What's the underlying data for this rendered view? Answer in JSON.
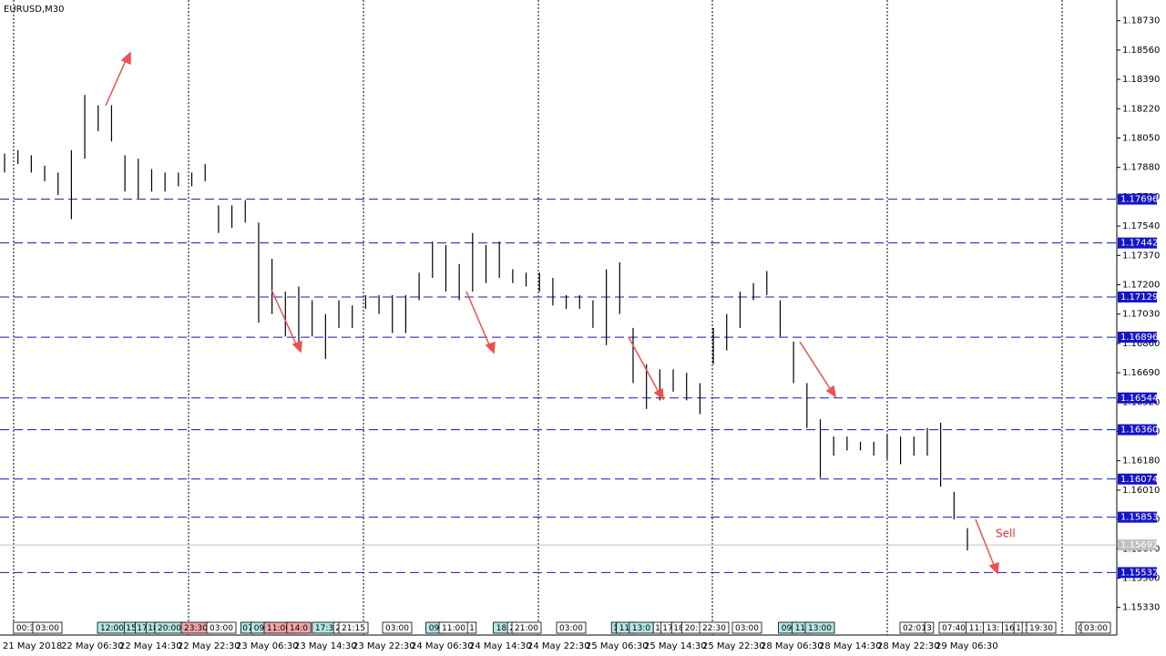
{
  "chart_data": {
    "type": "ohlc",
    "title": "EURUSD,M30",
    "bar_color": "#000000",
    "highs": [
      1.1796,
      1.1798,
      1.1795,
      1.1789,
      1.1785,
      1.1798,
      1.183,
      1.1824,
      1.1824,
      1.1795,
      1.1793,
      1.1787,
      1.1785,
      1.1785,
      1.1785,
      1.179,
      1.1766,
      1.1766,
      1.1769,
      1.1756,
      1.1735,
      1.1716,
      1.1719,
      1.1711,
      1.1703,
      1.1711,
      1.1708,
      1.1714,
      1.1714,
      1.1714,
      1.1714,
      1.1727,
      1.1745,
      1.1743,
      1.1732,
      1.175,
      1.1743,
      1.1745,
      1.1729,
      1.1727,
      1.1727,
      1.1724,
      1.1714,
      1.1714,
      1.1711,
      1.1729,
      1.1733,
      1.1695,
      1.1674,
      1.1671,
      1.1671,
      1.1669,
      1.1663,
      1.1695,
      1.1703,
      1.1716,
      1.1721,
      1.1728,
      1.1711,
      1.1687,
      1.1663,
      1.1642,
      1.1632,
      1.1632,
      1.1629,
      1.1629,
      1.1633,
      1.1632,
      1.1632,
      1.1637,
      1.164,
      1.16,
      1.1579
    ],
    "lows": [
      1.1785,
      1.179,
      1.1785,
      1.178,
      1.1772,
      1.1758,
      1.1793,
      1.1809,
      1.1803,
      1.1774,
      1.177,
      1.1774,
      1.1774,
      1.1777,
      1.1777,
      1.178,
      1.175,
      1.1753,
      1.1756,
      1.1698,
      1.1703,
      1.169,
      1.1685,
      1.169,
      1.1677,
      1.1695,
      1.1695,
      1.1706,
      1.1703,
      1.1692,
      1.1692,
      1.1711,
      1.1724,
      1.1716,
      1.1711,
      1.1716,
      1.1721,
      1.1724,
      1.1721,
      1.1719,
      1.1716,
      1.1708,
      1.1706,
      1.1706,
      1.1695,
      1.1685,
      1.1703,
      1.1663,
      1.1648,
      1.1653,
      1.1658,
      1.1653,
      1.1645,
      1.1674,
      1.1682,
      1.1695,
      1.1711,
      1.1714,
      1.169,
      1.1663,
      1.1637,
      1.1608,
      1.1621,
      1.1624,
      1.1624,
      1.1621,
      1.1619,
      1.1616,
      1.1621,
      1.1621,
      1.1603,
      1.1584,
      1.1566
    ],
    "ylim": [
      1.1517,
      1.1885
    ],
    "yticks": [
      {
        "value": 1.1873,
        "label": "1.18730"
      },
      {
        "value": 1.1856,
        "label": "1.18560"
      },
      {
        "value": 1.1839,
        "label": "1.18390"
      },
      {
        "value": 1.1822,
        "label": "1.18220"
      },
      {
        "value": 1.1805,
        "label": "1.18050"
      },
      {
        "value": 1.1788,
        "label": "1.17880"
      },
      {
        "value": 1.1771,
        "label": "1.17710"
      },
      {
        "value": 1.1754,
        "label": "1.17540"
      },
      {
        "value": 1.1737,
        "label": "1.17370"
      },
      {
        "value": 1.172,
        "label": "1.17200"
      },
      {
        "value": 1.1703,
        "label": "1.17030"
      },
      {
        "value": 1.1686,
        "label": "1.16860"
      },
      {
        "value": 1.1669,
        "label": "1.16690"
      },
      {
        "value": 1.1652,
        "label": "1.16520"
      },
      {
        "value": 1.1635,
        "label": "1.16350"
      },
      {
        "value": 1.1618,
        "label": "1.16180"
      },
      {
        "value": 1.1601,
        "label": "1.16010"
      },
      {
        "value": 1.1584,
        "label": "1.15840"
      },
      {
        "value": 1.1567,
        "label": "1.15670"
      },
      {
        "value": 1.155,
        "label": "1.15500"
      },
      {
        "value": 1.1533,
        "label": "1.15330"
      }
    ],
    "levels": [
      {
        "value": 1.17696,
        "label": "1.17696"
      },
      {
        "value": 1.17442,
        "label": "1.17442"
      },
      {
        "value": 1.17129,
        "label": "1.17129"
      },
      {
        "value": 1.16896,
        "label": "1.16896"
      },
      {
        "value": 1.16544,
        "label": "1.16544"
      },
      {
        "value": 1.1636,
        "label": "1.16360"
      },
      {
        "value": 1.16074,
        "label": "1.16074"
      },
      {
        "value": 1.15853,
        "label": "1.15853"
      },
      {
        "value": 1.15532,
        "label": "1.15532"
      }
    ],
    "level_color": "#1414c8",
    "current_price": {
      "value": 1.15692,
      "label": "1.15692"
    },
    "categories": [
      "21 May 2018",
      "22 May 06:30",
      "22 May 14:30",
      "22 May 22:30",
      "23 May 06:30",
      "23 May 14:30",
      "23 May 22:30",
      "24 May 06:30",
      "24 May 14:30",
      "24 May 22:30",
      "25 May 06:30",
      "25 May 14:30",
      "25 May 22:30",
      "28 May 06:30",
      "28 May 14:30",
      "28 May 22:30",
      "29 May 06:30"
    ],
    "annotation": "Sell",
    "events": [
      {
        "label": "00:3",
        "color": "#ffffff"
      },
      {
        "label": "03:00",
        "color": "#ffffff"
      },
      {
        "label": "12:00",
        "color": "#b4e6e6"
      },
      {
        "label": "15",
        "color": "#b4e6e6"
      },
      {
        "label": "17",
        "color": "#b4e6e6"
      },
      {
        "label": "18",
        "color": "#b4e6e6"
      },
      {
        "label": "20:00",
        "color": "#b4e6e6"
      },
      {
        "label": "23:30",
        "color": "#f4a6a6"
      },
      {
        "label": "03:00",
        "color": "#ffffff"
      },
      {
        "label": "07",
        "color": "#b4e6e6"
      },
      {
        "label": "09:",
        "color": "#b4e6e6"
      },
      {
        "label": "11:00",
        "color": "#f4a6a6"
      },
      {
        "label": "14:0",
        "color": "#f4a6a6"
      },
      {
        "label": "17:3",
        "color": "#b4e6e6"
      },
      {
        "label": "2",
        "color": "#ffffff"
      },
      {
        "label": "21:15",
        "color": "#ffffff"
      },
      {
        "label": "03:00",
        "color": "#ffffff"
      },
      {
        "label": "09:",
        "color": "#b4e6e6"
      },
      {
        "label": "11:00",
        "color": "#ffffff"
      },
      {
        "label": "1",
        "color": "#ffffff"
      },
      {
        "label": "18:",
        "color": "#b4e6e6"
      },
      {
        "label": "2",
        "color": "#ffffff"
      },
      {
        "label": "21:00",
        "color": "#ffffff"
      },
      {
        "label": "03:00",
        "color": "#ffffff"
      },
      {
        "label": "1",
        "color": "#b4e6e6"
      },
      {
        "label": "11:",
        "color": "#b4e6e6"
      },
      {
        "label": "13:0",
        "color": "#b4e6e6"
      },
      {
        "label": "1",
        "color": "#ffffff"
      },
      {
        "label": "17",
        "color": "#ffffff"
      },
      {
        "label": "18",
        "color": "#ffffff"
      },
      {
        "label": "20:",
        "color": "#ffffff"
      },
      {
        "label": "22:30",
        "color": "#ffffff"
      },
      {
        "label": "03:00",
        "color": "#ffffff"
      },
      {
        "label": "09:",
        "color": "#b4e6e6"
      },
      {
        "label": "11:",
        "color": "#b4e6e6"
      },
      {
        "label": "13:00",
        "color": "#b4e6e6"
      },
      {
        "label": "02:01",
        "color": "#ffffff"
      },
      {
        "label": "3",
        "color": "#ffffff"
      },
      {
        "label": "07:40",
        "color": "#ffffff"
      },
      {
        "label": "11:",
        "color": "#ffffff"
      },
      {
        "label": "13:",
        "color": "#ffffff"
      },
      {
        "label": "16",
        "color": "#ffffff"
      },
      {
        "label": "1",
        "color": "#ffffff"
      },
      {
        "label": "1",
        "color": "#ffffff"
      },
      {
        "label": "19:30",
        "color": "#ffffff"
      },
      {
        "label": "0",
        "color": "#ffffff"
      },
      {
        "label": "03:00",
        "color": "#ffffff"
      }
    ]
  }
}
